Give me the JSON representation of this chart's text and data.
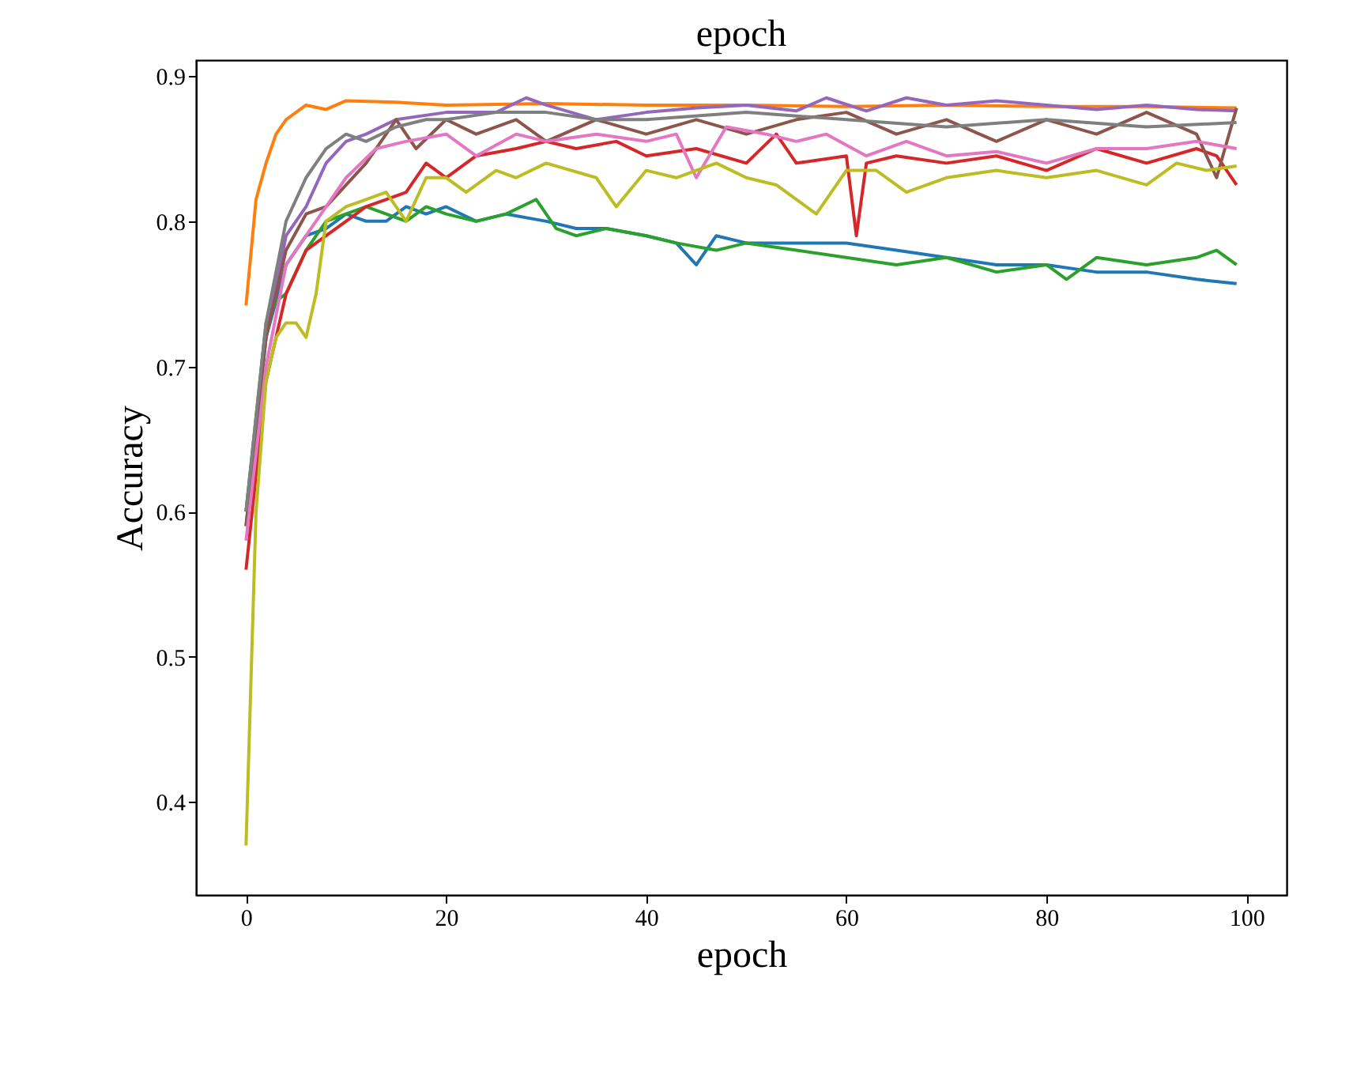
{
  "chart_data": {
    "type": "line",
    "title": "epoch",
    "xlabel": "epoch",
    "ylabel": "Accuracy",
    "xlim": [
      -5,
      104
    ],
    "xticks": [
      0,
      20,
      40,
      60,
      80,
      100
    ],
    "ylim": [
      0.336,
      0.911
    ],
    "yticks": [
      0.4,
      0.5,
      0.6,
      0.7,
      0.8,
      0.9
    ],
    "grid": false,
    "line_style": "solid",
    "series": [
      {
        "color": "#1f77b4",
        "x": [
          0,
          2,
          4,
          6,
          8,
          10,
          12,
          14,
          16,
          18,
          20,
          23,
          26,
          30,
          33,
          36,
          40,
          43,
          45,
          47,
          50,
          55,
          60,
          65,
          70,
          75,
          80,
          85,
          90,
          95,
          99
        ],
        "values": [
          0.59,
          0.72,
          0.77,
          0.79,
          0.795,
          0.805,
          0.8,
          0.8,
          0.81,
          0.805,
          0.81,
          0.8,
          0.805,
          0.8,
          0.795,
          0.795,
          0.79,
          0.785,
          0.77,
          0.79,
          0.785,
          0.785,
          0.785,
          0.78,
          0.775,
          0.77,
          0.77,
          0.765,
          0.765,
          0.76,
          0.757
        ]
      },
      {
        "color": "#ff7f0e",
        "x": [
          0,
          1,
          2,
          3,
          4,
          5,
          6,
          8,
          10,
          15,
          20,
          30,
          40,
          50,
          60,
          70,
          80,
          90,
          99
        ],
        "values": [
          0.742,
          0.815,
          0.84,
          0.86,
          0.87,
          0.875,
          0.88,
          0.877,
          0.883,
          0.882,
          0.88,
          0.881,
          0.88,
          0.88,
          0.879,
          0.88,
          0.879,
          0.879,
          0.878
        ]
      },
      {
        "color": "#2ca02c",
        "x": [
          0,
          2,
          3,
          4,
          6,
          8,
          10,
          12,
          14,
          16,
          18,
          20,
          23,
          26,
          29,
          31,
          33,
          36,
          40,
          43,
          47,
          50,
          55,
          60,
          65,
          70,
          75,
          80,
          82,
          85,
          90,
          95,
          97,
          99
        ],
        "values": [
          0.6,
          0.73,
          0.745,
          0.75,
          0.78,
          0.8,
          0.805,
          0.81,
          0.805,
          0.8,
          0.81,
          0.805,
          0.8,
          0.805,
          0.815,
          0.795,
          0.79,
          0.795,
          0.79,
          0.785,
          0.78,
          0.785,
          0.78,
          0.775,
          0.77,
          0.775,
          0.765,
          0.77,
          0.76,
          0.775,
          0.77,
          0.775,
          0.78,
          0.77
        ]
      },
      {
        "color": "#d62728",
        "x": [
          0,
          2,
          4,
          6,
          8,
          10,
          12,
          14,
          16,
          18,
          20,
          23,
          27,
          30,
          33,
          37,
          40,
          45,
          50,
          53,
          55,
          60,
          61,
          62,
          65,
          70,
          75,
          80,
          85,
          90,
          95,
          97,
          99
        ],
        "values": [
          0.56,
          0.69,
          0.75,
          0.78,
          0.79,
          0.8,
          0.81,
          0.815,
          0.82,
          0.84,
          0.83,
          0.845,
          0.85,
          0.855,
          0.85,
          0.855,
          0.845,
          0.85,
          0.84,
          0.86,
          0.84,
          0.845,
          0.79,
          0.84,
          0.845,
          0.84,
          0.845,
          0.835,
          0.85,
          0.84,
          0.85,
          0.845,
          0.825
        ]
      },
      {
        "color": "#9467bd",
        "x": [
          0,
          2,
          4,
          6,
          8,
          10,
          12,
          15,
          20,
          25,
          28,
          30,
          35,
          40,
          45,
          50,
          55,
          58,
          62,
          66,
          70,
          75,
          80,
          85,
          90,
          95,
          99
        ],
        "values": [
          0.6,
          0.72,
          0.79,
          0.81,
          0.84,
          0.855,
          0.86,
          0.87,
          0.875,
          0.875,
          0.885,
          0.88,
          0.87,
          0.875,
          0.878,
          0.88,
          0.876,
          0.885,
          0.876,
          0.885,
          0.88,
          0.883,
          0.88,
          0.877,
          0.88,
          0.877,
          0.876
        ]
      },
      {
        "color": "#8c564b",
        "x": [
          0,
          2,
          4,
          6,
          8,
          12,
          15,
          17,
          20,
          23,
          27,
          30,
          35,
          40,
          45,
          50,
          55,
          60,
          65,
          70,
          75,
          80,
          85,
          90,
          95,
          97,
          99
        ],
        "values": [
          0.59,
          0.72,
          0.78,
          0.805,
          0.81,
          0.84,
          0.87,
          0.85,
          0.87,
          0.86,
          0.87,
          0.855,
          0.87,
          0.86,
          0.87,
          0.86,
          0.87,
          0.875,
          0.86,
          0.87,
          0.855,
          0.87,
          0.86,
          0.875,
          0.86,
          0.83,
          0.878
        ]
      },
      {
        "color": "#e377c2",
        "x": [
          0,
          2,
          4,
          6,
          8,
          10,
          13,
          16,
          20,
          23,
          27,
          30,
          35,
          40,
          43,
          45,
          48,
          52,
          55,
          58,
          62,
          66,
          70,
          75,
          80,
          85,
          90,
          95,
          99
        ],
        "values": [
          0.58,
          0.7,
          0.77,
          0.79,
          0.81,
          0.83,
          0.85,
          0.855,
          0.86,
          0.845,
          0.86,
          0.855,
          0.86,
          0.855,
          0.86,
          0.83,
          0.865,
          0.86,
          0.855,
          0.86,
          0.845,
          0.855,
          0.845,
          0.848,
          0.84,
          0.85,
          0.85,
          0.855,
          0.85
        ]
      },
      {
        "color": "#7f7f7f",
        "x": [
          0,
          2,
          4,
          6,
          8,
          10,
          12,
          15,
          18,
          20,
          25,
          30,
          35,
          40,
          50,
          60,
          70,
          80,
          90,
          99
        ],
        "values": [
          0.6,
          0.73,
          0.8,
          0.83,
          0.85,
          0.86,
          0.855,
          0.865,
          0.87,
          0.87,
          0.875,
          0.875,
          0.87,
          0.87,
          0.875,
          0.87,
          0.865,
          0.87,
          0.865,
          0.868
        ]
      },
      {
        "color": "#bcbd22",
        "x": [
          0,
          1,
          2,
          3,
          4,
          5,
          6,
          7,
          8,
          10,
          12,
          14,
          15,
          16,
          18,
          20,
          22,
          25,
          27,
          30,
          35,
          37,
          40,
          43,
          47,
          50,
          53,
          57,
          60,
          63,
          66,
          70,
          75,
          80,
          85,
          90,
          93,
          96,
          99
        ],
        "values": [
          0.37,
          0.6,
          0.69,
          0.72,
          0.73,
          0.73,
          0.72,
          0.75,
          0.8,
          0.81,
          0.815,
          0.82,
          0.81,
          0.8,
          0.83,
          0.83,
          0.82,
          0.835,
          0.83,
          0.84,
          0.83,
          0.81,
          0.835,
          0.83,
          0.84,
          0.83,
          0.825,
          0.805,
          0.835,
          0.835,
          0.82,
          0.83,
          0.835,
          0.83,
          0.835,
          0.825,
          0.84,
          0.835,
          0.838
        ]
      }
    ]
  }
}
